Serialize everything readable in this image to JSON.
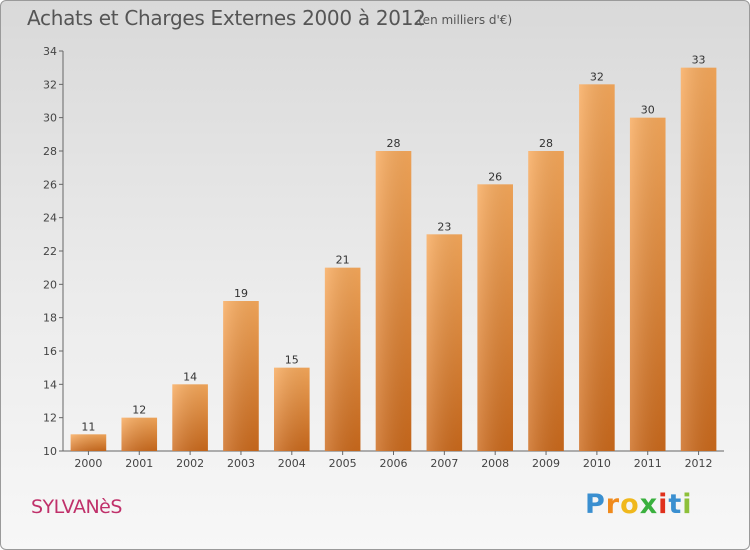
{
  "header": {
    "title": "Achats et Charges Externes 2000 à 2012",
    "subtitle": "(en milliers d'€)"
  },
  "footer": {
    "place": "SYLVANèS",
    "brand": "Proxiti"
  },
  "colors": {
    "bar_light": "#f7a85a",
    "bar_dark": "#cc6a1c",
    "place_text": "#c0306a"
  },
  "chart_data": {
    "type": "bar",
    "title": "Achats et Charges Externes 2000 à 2012",
    "subtitle": "(en milliers d'€)",
    "xlabel": "",
    "ylabel": "",
    "categories": [
      "2000",
      "2001",
      "2002",
      "2003",
      "2004",
      "2005",
      "2006",
      "2007",
      "2008",
      "2009",
      "2010",
      "2011",
      "2012"
    ],
    "values": [
      11,
      12,
      14,
      19,
      15,
      21,
      28,
      23,
      26,
      28,
      32,
      30,
      33
    ],
    "ylim": [
      10,
      34
    ],
    "yticks": [
      10,
      12,
      14,
      16,
      18,
      20,
      22,
      24,
      26,
      28,
      30,
      32,
      34
    ],
    "grid": false,
    "legend": "none"
  }
}
